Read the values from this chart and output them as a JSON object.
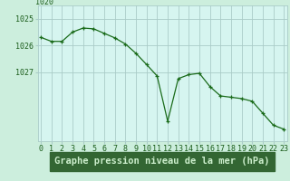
{
  "x": [
    0,
    1,
    2,
    3,
    4,
    5,
    6,
    7,
    8,
    9,
    10,
    11,
    12,
    13,
    14,
    15,
    16,
    17,
    18,
    19,
    20,
    21,
    22,
    23
  ],
  "y": [
    1025.7,
    1025.85,
    1025.85,
    1025.5,
    1025.35,
    1025.38,
    1025.55,
    1025.72,
    1025.95,
    1026.3,
    1026.72,
    1027.15,
    1028.85,
    1027.25,
    1027.1,
    1027.05,
    1027.55,
    1027.9,
    1027.95,
    1028.0,
    1028.1,
    1028.55,
    1029.0,
    1029.15
  ],
  "line_color": "#1a6b1a",
  "marker": "+",
  "bg_color": "#cceedd",
  "plot_bg_color": "#d6f5f0",
  "grid_color": "#aaccc8",
  "xlabel": "Graphe pression niveau de la mer (hPa)",
  "xlabel_fontsize": 7.5,
  "xlabel_bg": "#336633",
  "xlabel_fg": "#cceecc",
  "ylabel_ticks": [
    1025,
    1026,
    1027
  ],
  "ylim_bottom": 1029.6,
  "ylim_top": 1024.5,
  "xlim": [
    -0.3,
    23.3
  ],
  "text_color": "#1a5c1a",
  "tick_fontsize": 6.0,
  "top_label": "1020"
}
